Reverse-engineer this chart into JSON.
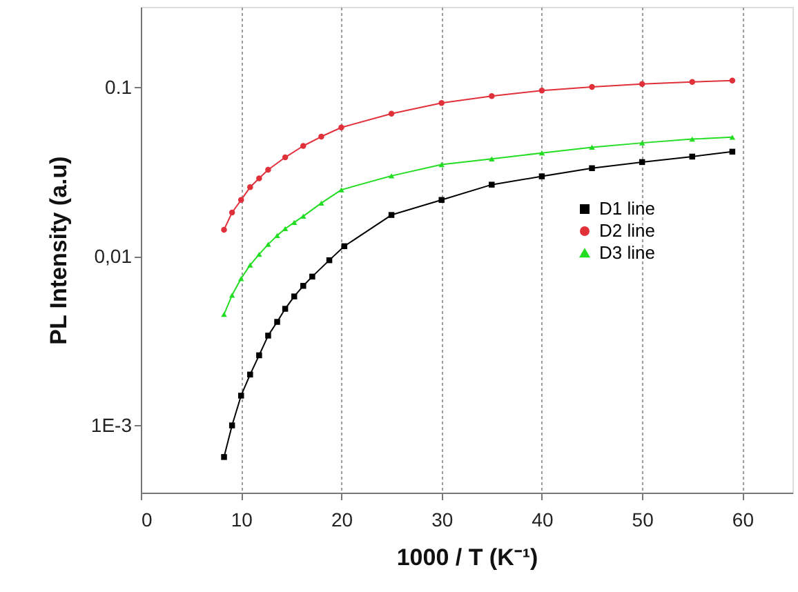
{
  "chart_data": {
    "type": "line",
    "xlabel": "1000 / T (K⁻¹)",
    "ylabel": "PL Intensity (a.u)",
    "xlim": [
      0,
      65
    ],
    "xticks": [
      0,
      10,
      20,
      30,
      40,
      50,
      60
    ],
    "ylim": [
      0.0004,
      0.3
    ],
    "yticks": [
      {
        "value": 0.001,
        "label": "1E-3"
      },
      {
        "value": 0.01,
        "label": "0,01"
      },
      0.1
    ],
    "log": "y",
    "grid": "x",
    "legend": "right",
    "line_style": "solid",
    "series": [
      {
        "name": "D1 line",
        "color": "#000000",
        "marker": "square",
        "x": [
          8.3,
          9.1,
          10,
          10.9,
          11.8,
          12.7,
          13.6,
          14.4,
          15.3,
          16.2,
          17.1,
          18.8,
          20.3,
          25,
          30,
          35,
          40,
          45,
          50,
          55,
          59
        ],
        "values": [
          0.00065,
          0.001,
          0.0015,
          0.002,
          0.0026,
          0.0034,
          0.0041,
          0.0049,
          0.0058,
          0.0067,
          0.0076,
          0.0095,
          0.0115,
          0.0176,
          0.0216,
          0.0266,
          0.0298,
          0.0333,
          0.0362,
          0.039,
          0.0417
        ]
      },
      {
        "name": "D2 line",
        "color": "#e0303a",
        "marker": "circle",
        "x": [
          8.3,
          9.1,
          10,
          10.9,
          11.8,
          12.7,
          14.4,
          16.2,
          18,
          20,
          25,
          30,
          35,
          40,
          45,
          50,
          55,
          59
        ],
        "values": [
          0.0144,
          0.0182,
          0.0216,
          0.0257,
          0.029,
          0.0326,
          0.0386,
          0.0451,
          0.0512,
          0.058,
          0.07,
          0.081,
          0.089,
          0.096,
          0.1007,
          0.105,
          0.108,
          0.11
        ]
      },
      {
        "name": "D3 line",
        "color": "#22dd22",
        "marker": "triangle",
        "x": [
          8.3,
          9.1,
          10,
          10.9,
          11.8,
          12.7,
          13.6,
          14.4,
          15.3,
          16.2,
          18,
          20,
          25,
          30,
          35,
          40,
          45,
          50,
          55,
          59
        ],
        "values": [
          0.00454,
          0.0059,
          0.0074,
          0.0089,
          0.0103,
          0.0118,
          0.0133,
          0.0146,
          0.0159,
          0.0173,
          0.0207,
          0.0248,
          0.03,
          0.035,
          0.0378,
          0.041,
          0.0443,
          0.047,
          0.0495,
          0.0508
        ]
      }
    ]
  }
}
